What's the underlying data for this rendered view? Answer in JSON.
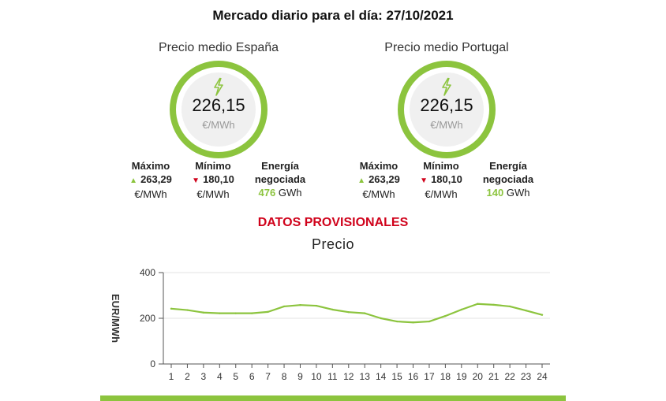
{
  "page": {
    "title": "Mercado diario para el día: 27/10/2021",
    "provisional": "DATOS PROVISIONALES"
  },
  "regions": {
    "spain": {
      "title": "Precio medio España",
      "value": "226,15",
      "unit": "€/MWh",
      "max_label": "Máximo",
      "max_value": "263,29",
      "max_unit": "€/MWh",
      "min_label": "Mínimo",
      "min_value": "180,10",
      "min_unit": "€/MWh",
      "energy_label_1": "Energía",
      "energy_label_2": "negociada",
      "energy_value": "476",
      "energy_unit": "GWh"
    },
    "portugal": {
      "title": "Precio medio Portugal",
      "value": "226,15",
      "unit": "€/MWh",
      "max_label": "Máximo",
      "max_value": "263,29",
      "max_unit": "€/MWh",
      "min_label": "Mínimo",
      "min_value": "180,10",
      "min_unit": "€/MWh",
      "energy_label_1": "Energía",
      "energy_label_2": "negociada",
      "energy_value": "140",
      "energy_unit": "GWh"
    }
  },
  "icons": {
    "bolt": "lightning-bolt-icon",
    "max_arrow": "triangle-up-icon",
    "min_arrow": "triangle-down-icon"
  },
  "colors": {
    "accent": "#8cc43e",
    "alert": "#d0021b",
    "gauge_fill": "#f0f0f0"
  },
  "chart_data": {
    "type": "line",
    "title": "Precio",
    "ylabel": "EUR/MWh",
    "xlabel": "",
    "ylim": [
      0,
      400
    ],
    "yticks": [
      0,
      200,
      400
    ],
    "grid": true,
    "x": [
      1,
      2,
      3,
      4,
      5,
      6,
      7,
      8,
      9,
      10,
      11,
      12,
      13,
      14,
      15,
      16,
      17,
      18,
      19,
      20,
      21,
      22,
      23,
      24
    ],
    "values": [
      242,
      236,
      225,
      222,
      222,
      222,
      228,
      252,
      258,
      255,
      238,
      227,
      222,
      200,
      186,
      182,
      186,
      210,
      238,
      263,
      259,
      252,
      234,
      215
    ],
    "line_color": "#8cc43e"
  }
}
